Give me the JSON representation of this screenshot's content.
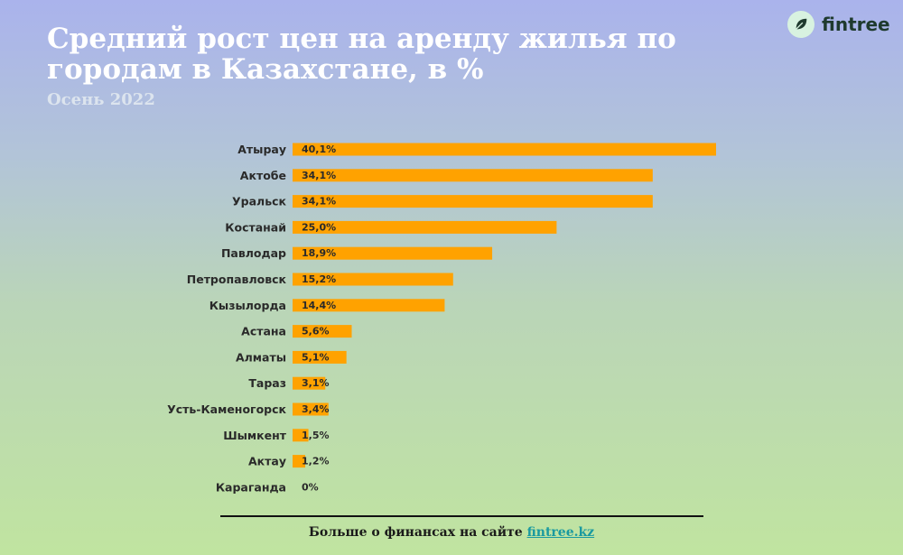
{
  "header": {
    "title": "Средний рост цен на аренду жилья по городам в Казахстане, в %",
    "subtitle": "Осень 2022"
  },
  "logo": {
    "name": "fintree",
    "icon": "leaf-icon"
  },
  "footer": {
    "text": "Больше о финансах на сайте ",
    "link": "fintree.kz"
  },
  "colors": {
    "bar": "#ffa200",
    "accent": "#1a9aa0"
  },
  "chart_data": {
    "type": "bar",
    "orientation": "horizontal",
    "categories": [
      "Атырау",
      "Актобе",
      "Уральск",
      "Костанай",
      "Павлодар",
      "Петропавловск",
      "Кызылорда",
      "Астана",
      "Алматы",
      "Тараз",
      "Усть-Каменогорск",
      "Шымкент",
      "Актау",
      "Караганда"
    ],
    "values": [
      40.1,
      34.1,
      34.1,
      25.0,
      18.9,
      15.2,
      14.4,
      5.6,
      5.1,
      3.1,
      3.4,
      1.5,
      1.2,
      0
    ],
    "value_labels": [
      "40,1%",
      "34,1%",
      "34,1%",
      "25,0%",
      "18,9%",
      "15,2%",
      "14,4%",
      "5,6%",
      "5,1%",
      "3,1%",
      "3,4%",
      "1,5%",
      "1,2%",
      "0%"
    ],
    "xlim": [
      0,
      40.1
    ],
    "grid": false,
    "legend": "none"
  }
}
